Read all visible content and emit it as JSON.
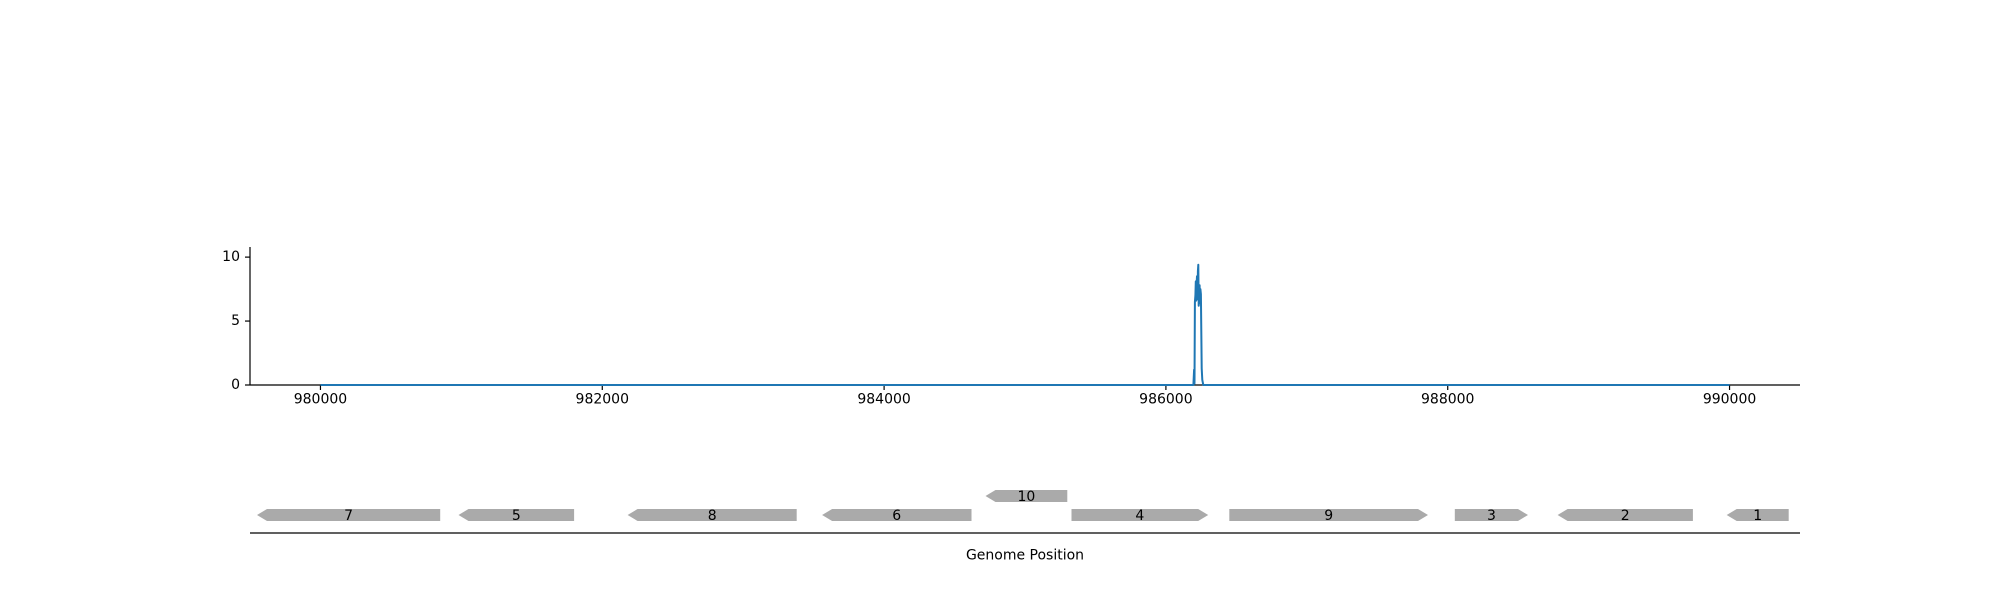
{
  "chart_data": [
    {
      "type": "line",
      "title": "",
      "xlabel": "",
      "ylabel": "",
      "xlim": [
        979500,
        990500
      ],
      "ylim": [
        0,
        10.4
      ],
      "xticks": [
        980000,
        982000,
        984000,
        986000,
        988000,
        990000
      ],
      "xtick_labels": [
        "980000",
        "982000",
        "984000",
        "986000",
        "988000",
        "990000"
      ],
      "yticks": [
        0,
        5,
        10
      ],
      "ytick_labels": [
        "0",
        "5",
        "10"
      ],
      "grid": false,
      "legend": "none",
      "series": [
        {
          "color": "#1f77b4",
          "x": [
            980000,
            986150,
            986195,
            986200,
            986203,
            986206,
            986209,
            986212,
            986215,
            986218,
            986221,
            986224,
            986227,
            986230,
            986233,
            986236,
            986239,
            986242,
            986245,
            986248,
            986251,
            986254,
            986258,
            986265,
            986270,
            986300,
            990000
          ],
          "y": [
            0,
            0,
            0,
            1.2,
            0.1,
            6.5,
            7.0,
            8.1,
            6.6,
            7.9,
            8.5,
            6.7,
            8.9,
            9.4,
            6.2,
            7.3,
            7.8,
            6.4,
            7.5,
            7.1,
            4.2,
            1.3,
            0.4,
            0,
            0,
            0,
            0
          ]
        }
      ]
    },
    {
      "type": "gene_track",
      "xlabel": "Genome Position",
      "xlim": [
        979500,
        990500
      ],
      "genes": [
        {
          "label": "7",
          "start": 979550,
          "end": 980850,
          "strand": "-",
          "row": 0
        },
        {
          "label": "5",
          "start": 980980,
          "end": 981800,
          "strand": "-",
          "row": 0
        },
        {
          "label": "8",
          "start": 982180,
          "end": 983380,
          "strand": "-",
          "row": 0
        },
        {
          "label": "6",
          "start": 983560,
          "end": 984620,
          "strand": "-",
          "row": 0
        },
        {
          "label": "10",
          "start": 984720,
          "end": 985300,
          "strand": "-",
          "row": 1
        },
        {
          "label": "4",
          "start": 985330,
          "end": 986300,
          "strand": "+",
          "row": 0
        },
        {
          "label": "9",
          "start": 986450,
          "end": 987860,
          "strand": "+",
          "row": 0
        },
        {
          "label": "3",
          "start": 988050,
          "end": 988570,
          "strand": "+",
          "row": 0
        },
        {
          "label": "2",
          "start": 988780,
          "end": 989740,
          "strand": "-",
          "row": 0
        },
        {
          "label": "1",
          "start": 989980,
          "end": 990420,
          "strand": "-",
          "row": 0
        }
      ],
      "gene_color": "#aaaaaa"
    }
  ]
}
